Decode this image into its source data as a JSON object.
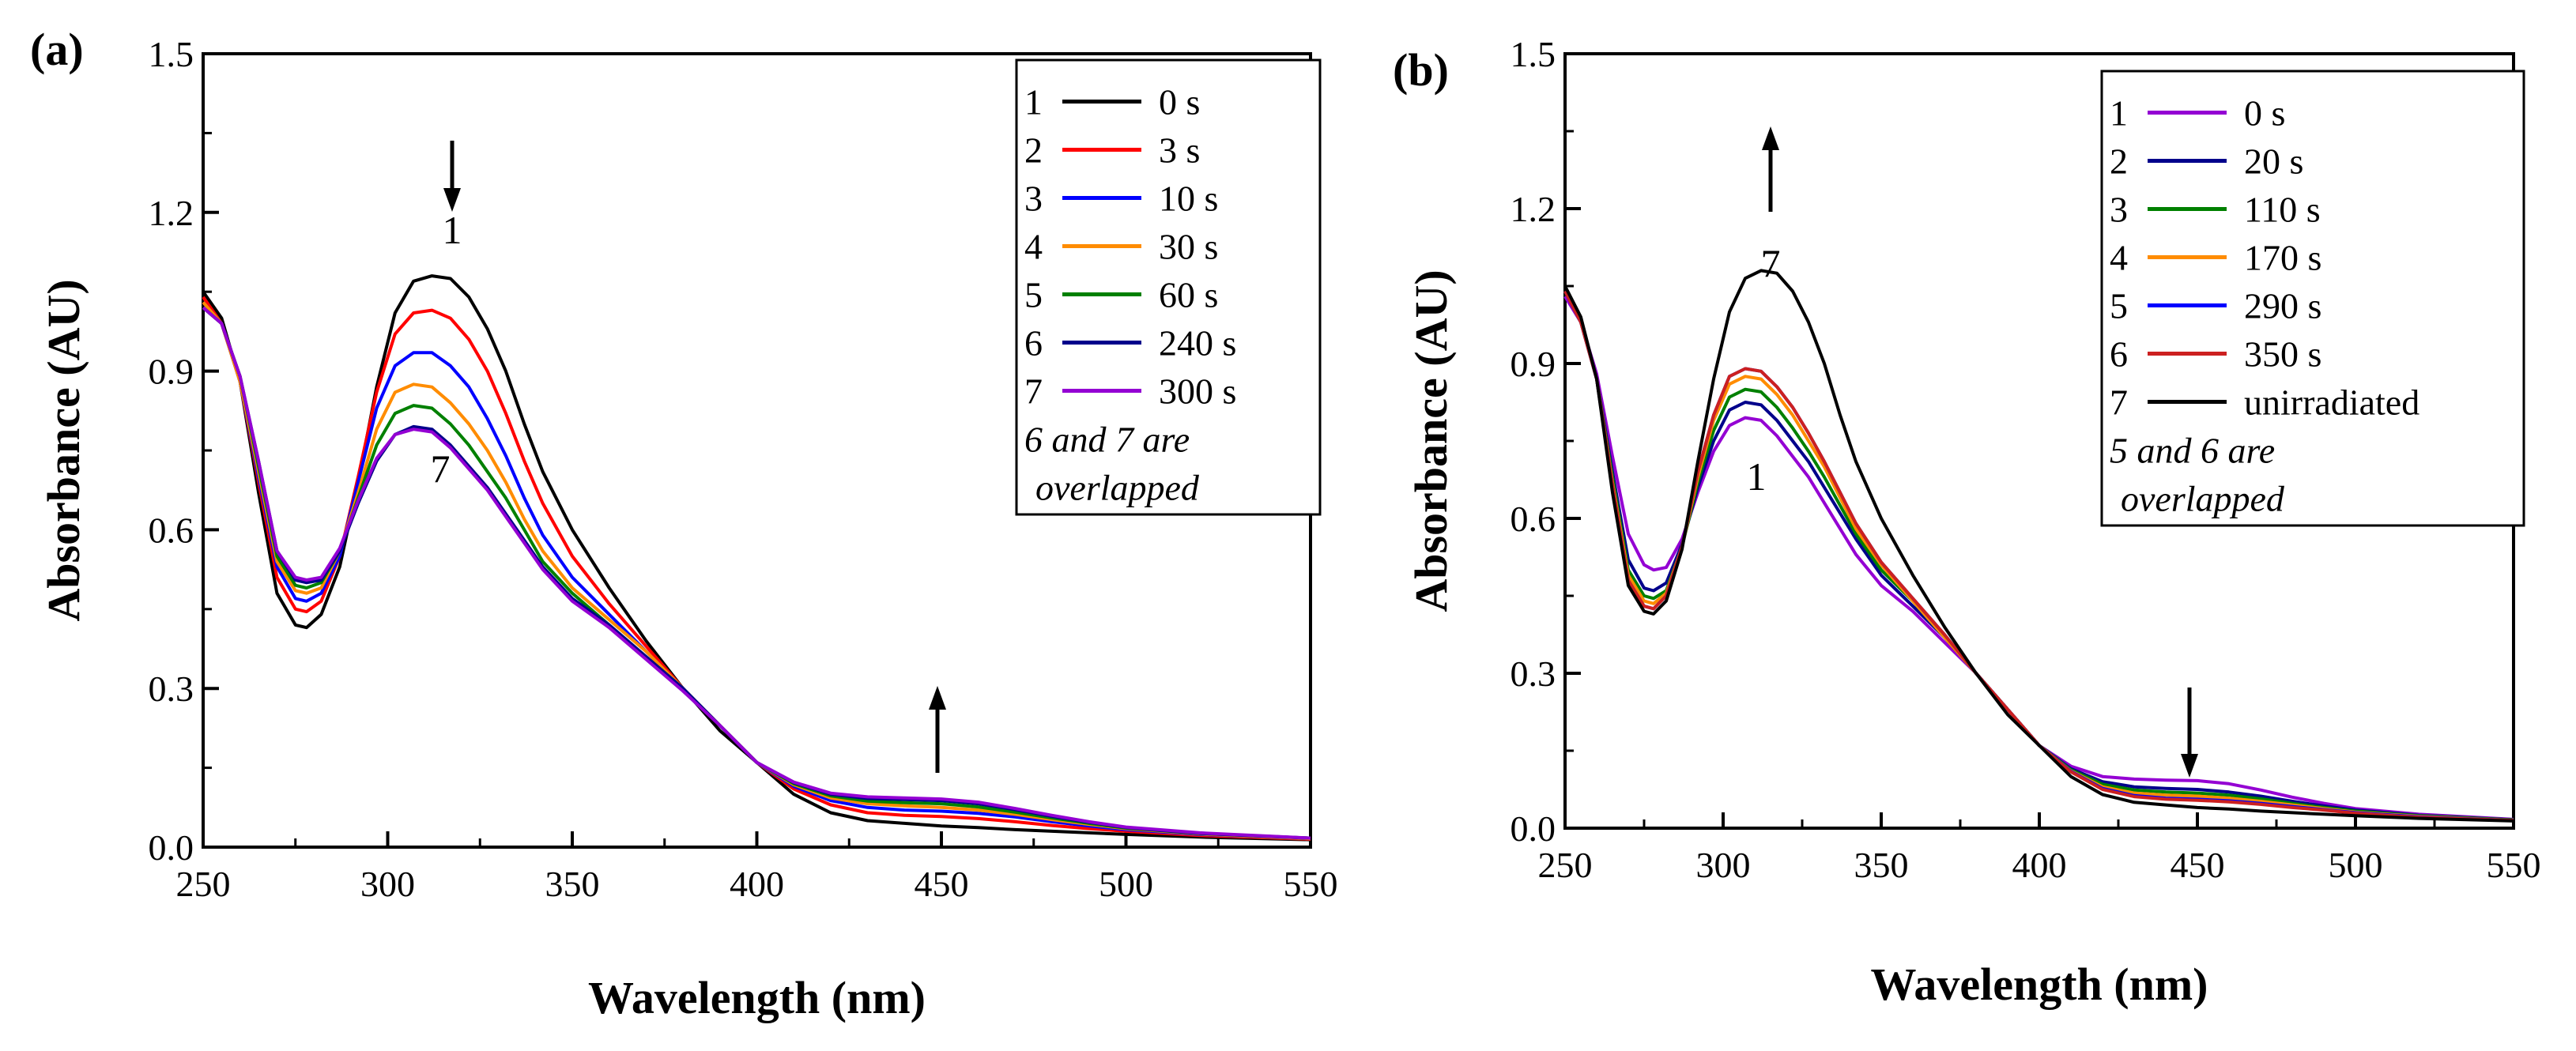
{
  "chart_data": [
    {
      "panel_label": "(a)",
      "type": "line",
      "xlabel": "Wavelength (nm)",
      "ylabel": "Absorbance (AU)",
      "xlim": [
        250,
        550
      ],
      "ylim": [
        0.0,
        1.5
      ],
      "xticks": [
        "250",
        "300",
        "350",
        "400",
        "450",
        "500",
        "550"
      ],
      "yticks": [
        "0.0",
        "0.3",
        "0.6",
        "0.9",
        "1.2",
        "1.5"
      ],
      "x": [
        250,
        255,
        260,
        265,
        270,
        275,
        278,
        282,
        287,
        292,
        297,
        302,
        307,
        312,
        317,
        322,
        327,
        332,
        337,
        342,
        350,
        360,
        370,
        380,
        390,
        400,
        410,
        420,
        430,
        440,
        450,
        460,
        470,
        480,
        490,
        500,
        520,
        550
      ],
      "series": [
        {
          "id": "1",
          "name": "0 s",
          "color": "#000000",
          "values": [
            1.05,
            1.0,
            0.88,
            0.67,
            0.48,
            0.42,
            0.415,
            0.44,
            0.53,
            0.69,
            0.87,
            1.01,
            1.07,
            1.08,
            1.075,
            1.04,
            0.98,
            0.9,
            0.8,
            0.71,
            0.6,
            0.49,
            0.39,
            0.3,
            0.22,
            0.16,
            0.1,
            0.065,
            0.05,
            0.045,
            0.04,
            0.037,
            0.033,
            0.03,
            0.027,
            0.024,
            0.019,
            0.014
          ]
        },
        {
          "id": "2",
          "name": "3 s",
          "color": "#ff0000",
          "values": [
            1.04,
            0.99,
            0.88,
            0.69,
            0.51,
            0.45,
            0.445,
            0.465,
            0.55,
            0.7,
            0.86,
            0.97,
            1.01,
            1.015,
            1.0,
            0.96,
            0.9,
            0.82,
            0.73,
            0.65,
            0.55,
            0.46,
            0.38,
            0.3,
            0.23,
            0.16,
            0.11,
            0.08,
            0.065,
            0.06,
            0.058,
            0.054,
            0.048,
            0.041,
            0.035,
            0.03,
            0.022,
            0.015
          ]
        },
        {
          "id": "3",
          "name": "10 s",
          "color": "#0000ff",
          "values": [
            1.03,
            0.99,
            0.88,
            0.7,
            0.53,
            0.47,
            0.465,
            0.48,
            0.55,
            0.69,
            0.83,
            0.91,
            0.935,
            0.935,
            0.91,
            0.87,
            0.81,
            0.74,
            0.66,
            0.59,
            0.51,
            0.44,
            0.37,
            0.3,
            0.23,
            0.16,
            0.115,
            0.088,
            0.075,
            0.07,
            0.068,
            0.064,
            0.057,
            0.048,
            0.04,
            0.033,
            0.024,
            0.016
          ]
        },
        {
          "id": "4",
          "name": "30 s",
          "color": "#ff8c00",
          "values": [
            1.03,
            0.99,
            0.88,
            0.71,
            0.54,
            0.485,
            0.48,
            0.49,
            0.56,
            0.67,
            0.79,
            0.86,
            0.875,
            0.87,
            0.84,
            0.8,
            0.75,
            0.69,
            0.62,
            0.56,
            0.49,
            0.43,
            0.37,
            0.3,
            0.23,
            0.16,
            0.118,
            0.093,
            0.082,
            0.078,
            0.075,
            0.07,
            0.062,
            0.052,
            0.043,
            0.035,
            0.025,
            0.016
          ]
        },
        {
          "id": "5",
          "name": "60 s",
          "color": "#008000",
          "values": [
            1.02,
            0.99,
            0.89,
            0.72,
            0.55,
            0.495,
            0.49,
            0.5,
            0.56,
            0.66,
            0.76,
            0.82,
            0.835,
            0.83,
            0.8,
            0.76,
            0.71,
            0.66,
            0.6,
            0.54,
            0.48,
            0.42,
            0.36,
            0.3,
            0.23,
            0.16,
            0.12,
            0.097,
            0.087,
            0.084,
            0.082,
            0.076,
            0.066,
            0.055,
            0.045,
            0.036,
            0.026,
            0.017
          ]
        },
        {
          "id": "6",
          "name": "240 s",
          "color": "#00008b",
          "values": [
            1.02,
            0.99,
            0.89,
            0.73,
            0.56,
            0.505,
            0.5,
            0.505,
            0.56,
            0.65,
            0.73,
            0.78,
            0.795,
            0.79,
            0.76,
            0.72,
            0.68,
            0.63,
            0.58,
            0.53,
            0.47,
            0.42,
            0.36,
            0.3,
            0.23,
            0.16,
            0.122,
            0.1,
            0.092,
            0.09,
            0.088,
            0.082,
            0.071,
            0.058,
            0.047,
            0.037,
            0.026,
            0.017
          ]
        },
        {
          "id": "7",
          "name": "300 s",
          "color": "#9400d3",
          "values": [
            1.02,
            0.99,
            0.89,
            0.73,
            0.56,
            0.51,
            0.505,
            0.51,
            0.565,
            0.655,
            0.735,
            0.78,
            0.79,
            0.785,
            0.755,
            0.715,
            0.675,
            0.625,
            0.575,
            0.525,
            0.465,
            0.415,
            0.355,
            0.295,
            0.23,
            0.16,
            0.123,
            0.102,
            0.095,
            0.093,
            0.091,
            0.085,
            0.073,
            0.06,
            0.048,
            0.038,
            0.027,
            0.017
          ]
        }
      ],
      "legend_note": [
        "6 and 7 are",
        "overlapped"
      ],
      "annotations": {
        "top_label": "1",
        "bottom_label": "7",
        "arrow_near_peak": "down",
        "arrow_near_450": "up"
      }
    },
    {
      "panel_label": "(b)",
      "type": "line",
      "xlabel": "Wavelength (nm)",
      "ylabel": "Absorbance (AU)",
      "xlim": [
        250,
        550
      ],
      "ylim": [
        0.0,
        1.5
      ],
      "xticks": [
        "250",
        "300",
        "350",
        "400",
        "450",
        "500",
        "550"
      ],
      "yticks": [
        "0.0",
        "0.3",
        "0.6",
        "0.9",
        "1.2",
        "1.5"
      ],
      "x": [
        250,
        255,
        260,
        265,
        270,
        275,
        278,
        282,
        287,
        292,
        297,
        302,
        307,
        312,
        317,
        322,
        327,
        332,
        337,
        342,
        350,
        360,
        370,
        380,
        390,
        400,
        410,
        420,
        430,
        440,
        450,
        460,
        470,
        480,
        490,
        500,
        520,
        550
      ],
      "series": [
        {
          "id": "1",
          "name": "0 s",
          "color": "#9400d3",
          "values": [
            1.03,
            0.98,
            0.88,
            0.72,
            0.57,
            0.51,
            0.5,
            0.505,
            0.56,
            0.65,
            0.73,
            0.78,
            0.795,
            0.79,
            0.76,
            0.72,
            0.68,
            0.63,
            0.58,
            0.53,
            0.47,
            0.42,
            0.36,
            0.3,
            0.23,
            0.16,
            0.12,
            0.1,
            0.095,
            0.093,
            0.092,
            0.086,
            0.074,
            0.06,
            0.048,
            0.038,
            0.027,
            0.017
          ]
        },
        {
          "id": "2",
          "name": "20 s",
          "color": "#00008b",
          "values": [
            1.04,
            0.98,
            0.87,
            0.69,
            0.52,
            0.465,
            0.46,
            0.475,
            0.55,
            0.66,
            0.75,
            0.81,
            0.825,
            0.82,
            0.79,
            0.75,
            0.71,
            0.66,
            0.61,
            0.56,
            0.49,
            0.43,
            0.37,
            0.3,
            0.23,
            0.16,
            0.115,
            0.09,
            0.08,
            0.077,
            0.075,
            0.07,
            0.062,
            0.052,
            0.043,
            0.035,
            0.025,
            0.016
          ]
        },
        {
          "id": "3",
          "name": "110 s",
          "color": "#008000",
          "values": [
            1.04,
            0.98,
            0.87,
            0.68,
            0.5,
            0.45,
            0.445,
            0.46,
            0.545,
            0.67,
            0.77,
            0.835,
            0.85,
            0.845,
            0.815,
            0.775,
            0.73,
            0.68,
            0.625,
            0.57,
            0.5,
            0.44,
            0.37,
            0.3,
            0.23,
            0.16,
            0.113,
            0.085,
            0.074,
            0.07,
            0.068,
            0.064,
            0.057,
            0.048,
            0.04,
            0.033,
            0.024,
            0.016
          ]
        },
        {
          "id": "4",
          "name": "170 s",
          "color": "#ff8c00",
          "values": [
            1.04,
            0.98,
            0.87,
            0.67,
            0.49,
            0.44,
            0.435,
            0.455,
            0.545,
            0.68,
            0.79,
            0.86,
            0.875,
            0.87,
            0.84,
            0.8,
            0.75,
            0.7,
            0.64,
            0.58,
            0.51,
            0.44,
            0.37,
            0.3,
            0.23,
            0.16,
            0.111,
            0.08,
            0.068,
            0.064,
            0.062,
            0.058,
            0.052,
            0.045,
            0.038,
            0.031,
            0.023,
            0.015
          ]
        },
        {
          "id": "5",
          "name": "290 s",
          "color": "#0000ff",
          "values": [
            1.04,
            0.98,
            0.87,
            0.665,
            0.48,
            0.43,
            0.425,
            0.45,
            0.545,
            0.69,
            0.8,
            0.875,
            0.89,
            0.885,
            0.855,
            0.815,
            0.765,
            0.71,
            0.65,
            0.59,
            0.515,
            0.445,
            0.375,
            0.3,
            0.23,
            0.16,
            0.11,
            0.077,
            0.063,
            0.058,
            0.056,
            0.053,
            0.048,
            0.042,
            0.036,
            0.03,
            0.022,
            0.015
          ]
        },
        {
          "id": "6",
          "name": "350 s",
          "color": "#cc2020",
          "values": [
            1.04,
            0.98,
            0.87,
            0.665,
            0.48,
            0.43,
            0.425,
            0.45,
            0.545,
            0.69,
            0.8,
            0.875,
            0.89,
            0.885,
            0.855,
            0.815,
            0.765,
            0.71,
            0.65,
            0.59,
            0.515,
            0.445,
            0.375,
            0.3,
            0.23,
            0.16,
            0.109,
            0.075,
            0.061,
            0.056,
            0.054,
            0.051,
            0.046,
            0.04,
            0.035,
            0.029,
            0.021,
            0.015
          ]
        },
        {
          "id": "7",
          "name": "unirradiated",
          "color": "#000000",
          "values": [
            1.05,
            0.99,
            0.87,
            0.65,
            0.47,
            0.42,
            0.415,
            0.44,
            0.54,
            0.71,
            0.87,
            1.0,
            1.065,
            1.08,
            1.075,
            1.04,
            0.98,
            0.9,
            0.8,
            0.71,
            0.6,
            0.49,
            0.39,
            0.3,
            0.22,
            0.16,
            0.1,
            0.065,
            0.05,
            0.045,
            0.04,
            0.037,
            0.033,
            0.03,
            0.027,
            0.024,
            0.019,
            0.014
          ]
        }
      ],
      "legend_note": [
        "5 and 6 are",
        "overlapped"
      ],
      "annotations": {
        "top_label": "7",
        "bottom_label": "1",
        "arrow_near_peak": "up",
        "arrow_near_450": "down"
      }
    }
  ]
}
